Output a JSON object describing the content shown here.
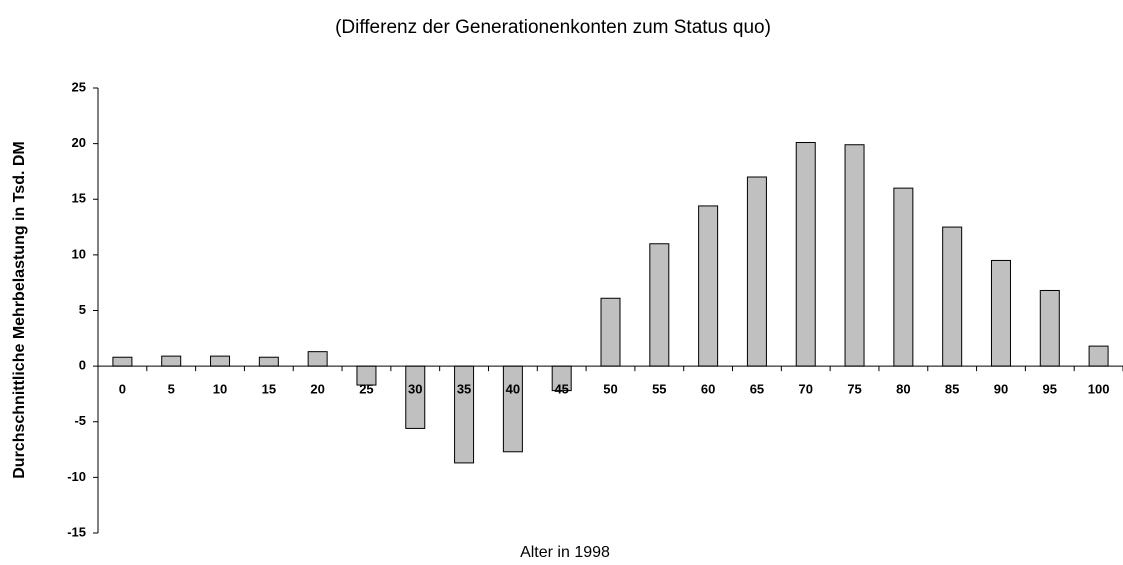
{
  "chart_data": {
    "type": "bar",
    "title": "(Differenz der Generationenkonten zum Status quo)",
    "x_label": "Alter in 1998",
    "y_label": "Durchschnittliche Mehrbelastung in Tsd. DM",
    "categories": [
      "0",
      "5",
      "10",
      "15",
      "20",
      "25",
      "30",
      "35",
      "40",
      "45",
      "50",
      "55",
      "60",
      "65",
      "70",
      "75",
      "80",
      "85",
      "90",
      "95",
      "100"
    ],
    "values": [
      0.8,
      0.9,
      0.9,
      0.8,
      1.3,
      -1.7,
      -5.6,
      -8.7,
      -7.7,
      -2.2,
      6.1,
      11.0,
      14.4,
      17.0,
      20.1,
      19.9,
      16.0,
      12.5,
      9.5,
      6.8,
      1.8
    ],
    "color": "#c0c0c0",
    "ylim": [
      -15,
      25
    ],
    "yticks": [
      -15,
      -10,
      -5,
      0,
      5,
      10,
      15,
      20,
      25
    ],
    "grid": false
  }
}
